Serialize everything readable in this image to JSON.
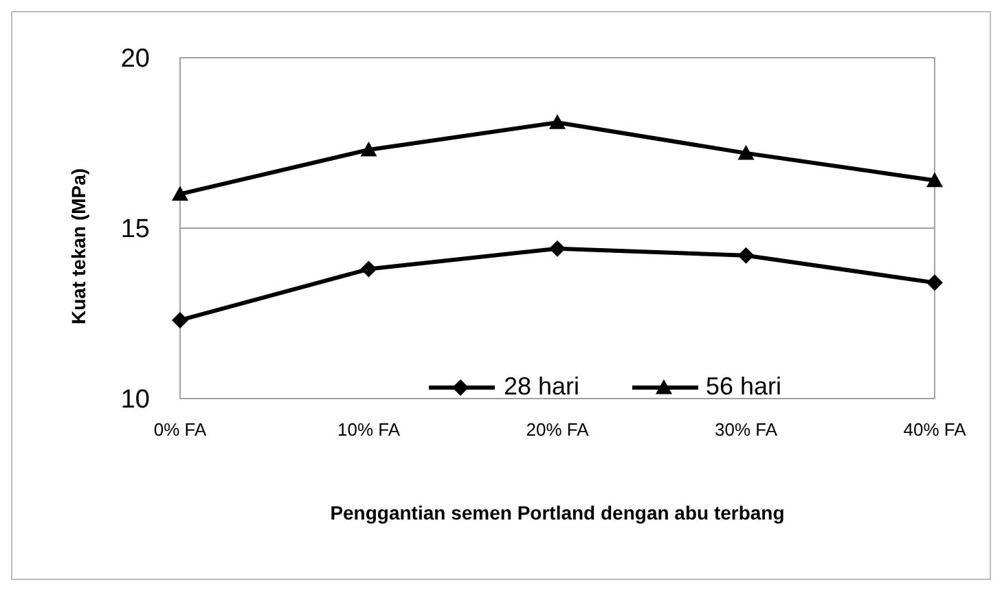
{
  "chart_data": {
    "type": "line",
    "xlabel": "Penggantian semen Portland dengan abu terbang",
    "ylabel": "Kuat tekan  (MPa)",
    "categories": [
      "0% FA",
      "10% FA",
      "20% FA",
      "30% FA",
      "40% FA"
    ],
    "series": [
      {
        "name": "28 hari",
        "color": "#000000",
        "marker": "diamond",
        "values": [
          12.3,
          13.8,
          14.4,
          14.2,
          13.4
        ]
      },
      {
        "name": "56 hari",
        "color": "#000000",
        "marker": "triangle",
        "values": [
          16.0,
          17.3,
          18.1,
          17.2,
          16.4
        ]
      }
    ],
    "ylim": [
      10,
      20
    ],
    "yticks": [
      10,
      15,
      20
    ],
    "grid": "y",
    "legend": "bottom"
  }
}
